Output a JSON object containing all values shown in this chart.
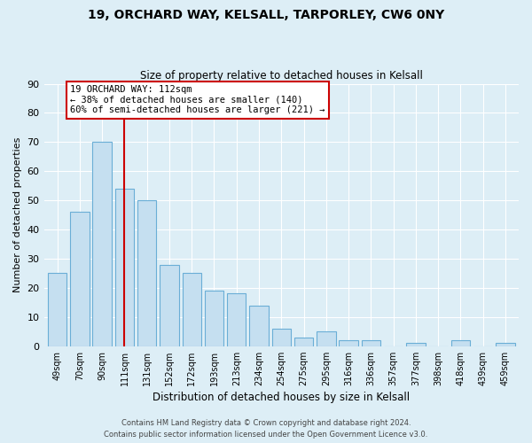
{
  "title": "19, ORCHARD WAY, KELSALL, TARPORLEY, CW6 0NY",
  "subtitle": "Size of property relative to detached houses in Kelsall",
  "xlabel": "Distribution of detached houses by size in Kelsall",
  "ylabel": "Number of detached properties",
  "categories": [
    "49sqm",
    "70sqm",
    "90sqm",
    "111sqm",
    "131sqm",
    "152sqm",
    "172sqm",
    "193sqm",
    "213sqm",
    "234sqm",
    "254sqm",
    "275sqm",
    "295sqm",
    "316sqm",
    "336sqm",
    "357sqm",
    "377sqm",
    "398sqm",
    "418sqm",
    "439sqm",
    "459sqm"
  ],
  "values": [
    25,
    46,
    70,
    54,
    50,
    28,
    25,
    19,
    18,
    14,
    6,
    3,
    5,
    2,
    2,
    0,
    1,
    0,
    2,
    0,
    1
  ],
  "bar_color": "#c5dff0",
  "bar_edge_color": "#6aaed6",
  "vline_x_index": 3,
  "vline_color": "#cc0000",
  "annotation_title": "19 ORCHARD WAY: 112sqm",
  "annotation_line1": "← 38% of detached houses are smaller (140)",
  "annotation_line2": "60% of semi-detached houses are larger (221) →",
  "annotation_box_color": "#ffffff",
  "annotation_box_edge": "#cc0000",
  "ylim": [
    0,
    90
  ],
  "yticks": [
    0,
    10,
    20,
    30,
    40,
    50,
    60,
    70,
    80,
    90
  ],
  "footer_line1": "Contains HM Land Registry data © Crown copyright and database right 2024.",
  "footer_line2": "Contains public sector information licensed under the Open Government Licence v3.0.",
  "bg_color": "#ddeef6",
  "plot_bg_color": "#ddeef6",
  "title_fontsize": 10,
  "subtitle_fontsize": 8.5
}
